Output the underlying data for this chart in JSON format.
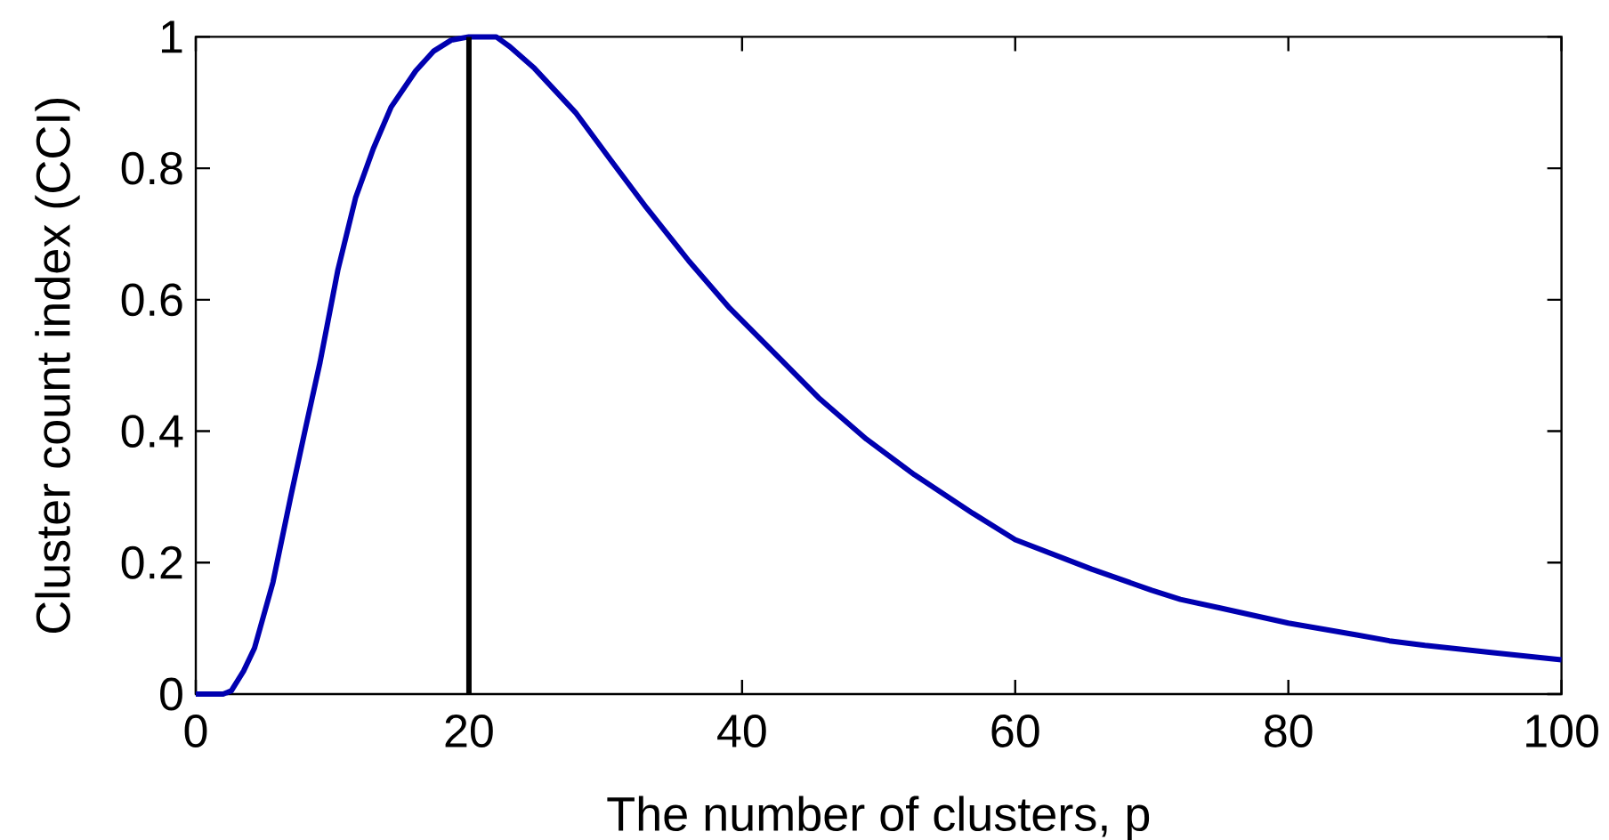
{
  "chart_data": {
    "type": "line",
    "xlabel": "The number of clusters, p",
    "ylabel": "Cluster count index (CCI)",
    "x": [
      0,
      1,
      2,
      2.6,
      3.5,
      4.3,
      5.65,
      6.95,
      8.04,
      9.1,
      10.4,
      11.7,
      13,
      14.3,
      16.1,
      17.4,
      18.7,
      20,
      22,
      23,
      24.8,
      27.8,
      30.4,
      33,
      36.1,
      39.1,
      42.6,
      45.6,
      49.1,
      52.6,
      56.9,
      60,
      65.6,
      70,
      72.1,
      75,
      80,
      85,
      87.4,
      90,
      95,
      100
    ],
    "series": [
      {
        "color": "#0000b0",
        "values": [
          0,
          0,
          0,
          0.005,
          0.035,
          0.07,
          0.17,
          0.3,
          0.405,
          0.505,
          0.645,
          0.755,
          0.83,
          0.893,
          0.948,
          0.978,
          0.995,
          1,
          1,
          0.985,
          0.952,
          0.885,
          0.812,
          0.74,
          0.659,
          0.587,
          0.514,
          0.451,
          0.388,
          0.334,
          0.275,
          0.235,
          0.19,
          0.158,
          0.144,
          0.131,
          0.108,
          0.09,
          0.081,
          0.074,
          0.063,
          0.052
        ]
      }
    ],
    "xlim": [
      0,
      100
    ],
    "ylim": [
      0,
      1
    ],
    "xticks": [
      0,
      20,
      40,
      60,
      80,
      100
    ],
    "yticks": [
      0,
      0.2,
      0.4,
      0.6,
      0.8,
      1
    ],
    "ref_lines": [
      {
        "axis": "x",
        "value": 20,
        "color": "#000000",
        "line_style": "solid"
      }
    ],
    "line_style": "solid"
  }
}
